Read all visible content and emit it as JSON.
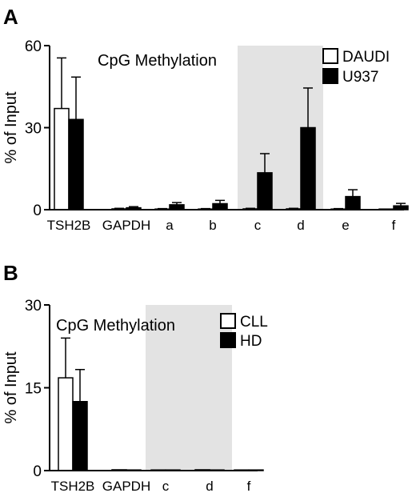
{
  "chart_data": [
    {
      "panel": "A",
      "type": "bar",
      "title": "CpG Methylation",
      "xlabel": "",
      "ylabel": "% of Input",
      "ylim": [
        0,
        60
      ],
      "yticks": [
        0,
        30,
        60
      ],
      "categories": [
        "TSH2B",
        "GAPDH",
        "a",
        "b",
        "c",
        "d",
        "e",
        "f"
      ],
      "highlight_categories": [
        "c",
        "d"
      ],
      "series": [
        {
          "name": "DAUDI",
          "fill": "#ffffff",
          "values": [
            37,
            0.3,
            0.2,
            0.2,
            0.3,
            0.3,
            0.2,
            0.1
          ],
          "errors": [
            18.5,
            0.2,
            0.2,
            0.2,
            0.2,
            0.2,
            0.2,
            0.1
          ]
        },
        {
          "name": "U937",
          "fill": "#000000",
          "values": [
            33,
            0.7,
            1.8,
            2.2,
            13.5,
            30,
            4.8,
            1.4
          ],
          "errors": [
            15.5,
            0.4,
            0.8,
            1.2,
            7,
            14.5,
            2.5,
            0.9
          ]
        }
      ],
      "legend_position": "top-right"
    },
    {
      "panel": "B",
      "type": "bar",
      "title": "CpG Methylation",
      "xlabel": "",
      "ylabel": "% of Input",
      "ylim": [
        0,
        30
      ],
      "yticks": [
        0,
        15,
        30
      ],
      "categories": [
        "TSH2B",
        "GAPDH",
        "c",
        "d",
        "f"
      ],
      "highlight_categories": [
        "c",
        "d"
      ],
      "series": [
        {
          "name": "CLL",
          "fill": "#ffffff",
          "values": [
            16.8,
            0.15,
            0.1,
            0.15,
            0.05
          ],
          "errors": [
            7.2,
            0.1,
            0.1,
            0.1,
            0.05
          ]
        },
        {
          "name": "HD",
          "fill": "#000000",
          "values": [
            12.5,
            0.1,
            0.05,
            0.1,
            0.05
          ],
          "errors": [
            5.8,
            0.05,
            0.05,
            0.05,
            0.05
          ]
        }
      ],
      "legend_position": "top-right"
    }
  ]
}
